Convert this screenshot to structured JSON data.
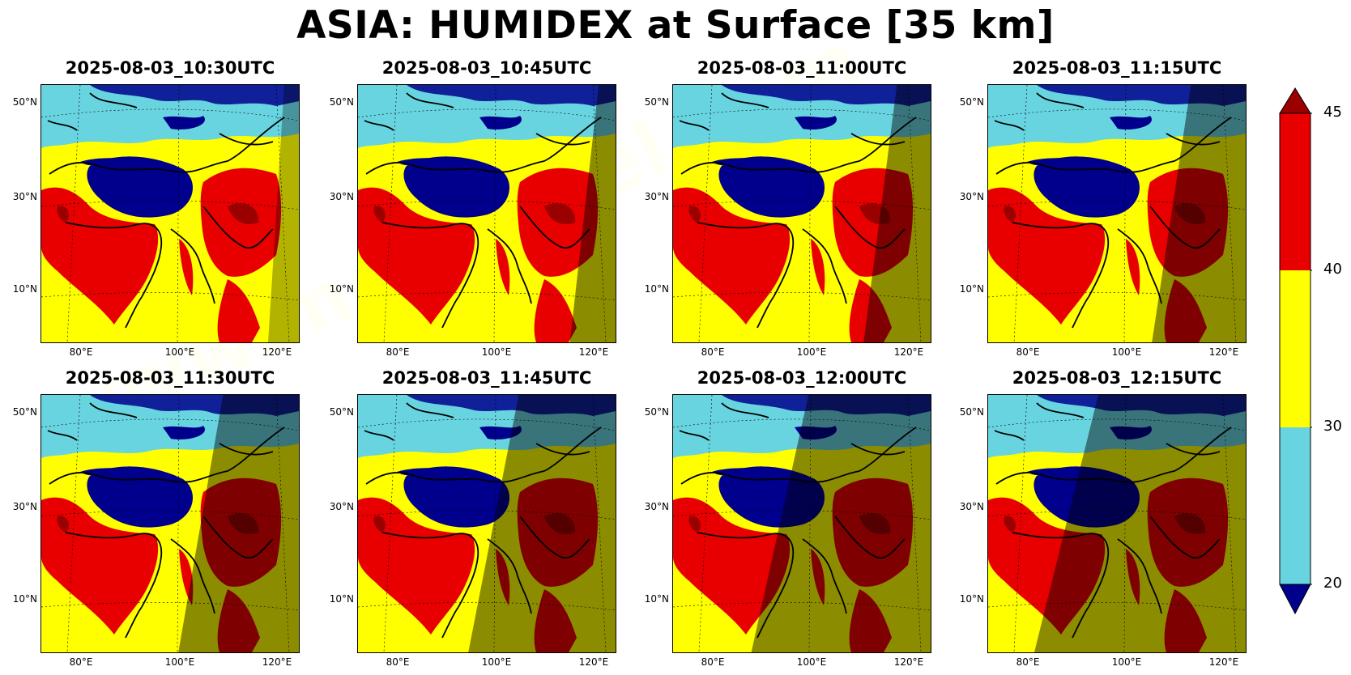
{
  "title": "ASIA: HUMIDEX at Surface [35 km]",
  "panels": [
    {
      "time": "2025-08-03_10:30UTC",
      "shade": 0.0
    },
    {
      "time": "2025-08-03_10:45UTC",
      "shade": 0.08
    },
    {
      "time": "2025-08-03_11:00UTC",
      "shade": 0.16
    },
    {
      "time": "2025-08-03_11:15UTC",
      "shade": 0.26
    },
    {
      "time": "2025-08-03_11:30UTC",
      "shade": 0.36
    },
    {
      "time": "2025-08-03_11:45UTC",
      "shade": 0.46
    },
    {
      "time": "2025-08-03_12:00UTC",
      "shade": 0.58
    },
    {
      "time": "2025-08-03_12:15UTC",
      "shade": 0.7
    }
  ],
  "lat_labels": [
    "50°N",
    "30°N",
    "10°N"
  ],
  "lon_labels": [
    "80°E",
    "100°E",
    "120°E"
  ],
  "colorbar": {
    "ticks": [
      "45",
      "40",
      "30",
      "20"
    ],
    "bins": [
      {
        "from": 20,
        "to": 30,
        "color": "#68d4e0"
      },
      {
        "from": 30,
        "to": 40,
        "color": "#ffff00"
      },
      {
        "from": 40,
        "to": 45,
        "color": "#e80000"
      }
    ],
    "under_color": "#00008c",
    "over_color": "#9a0000"
  },
  "colors": {
    "cold": "#00008c",
    "cool": "#68d4e0",
    "warm": "#ffff00",
    "hot": "#e80000",
    "extreme": "#9a0000"
  },
  "watermark": "www.meteociel.com"
}
